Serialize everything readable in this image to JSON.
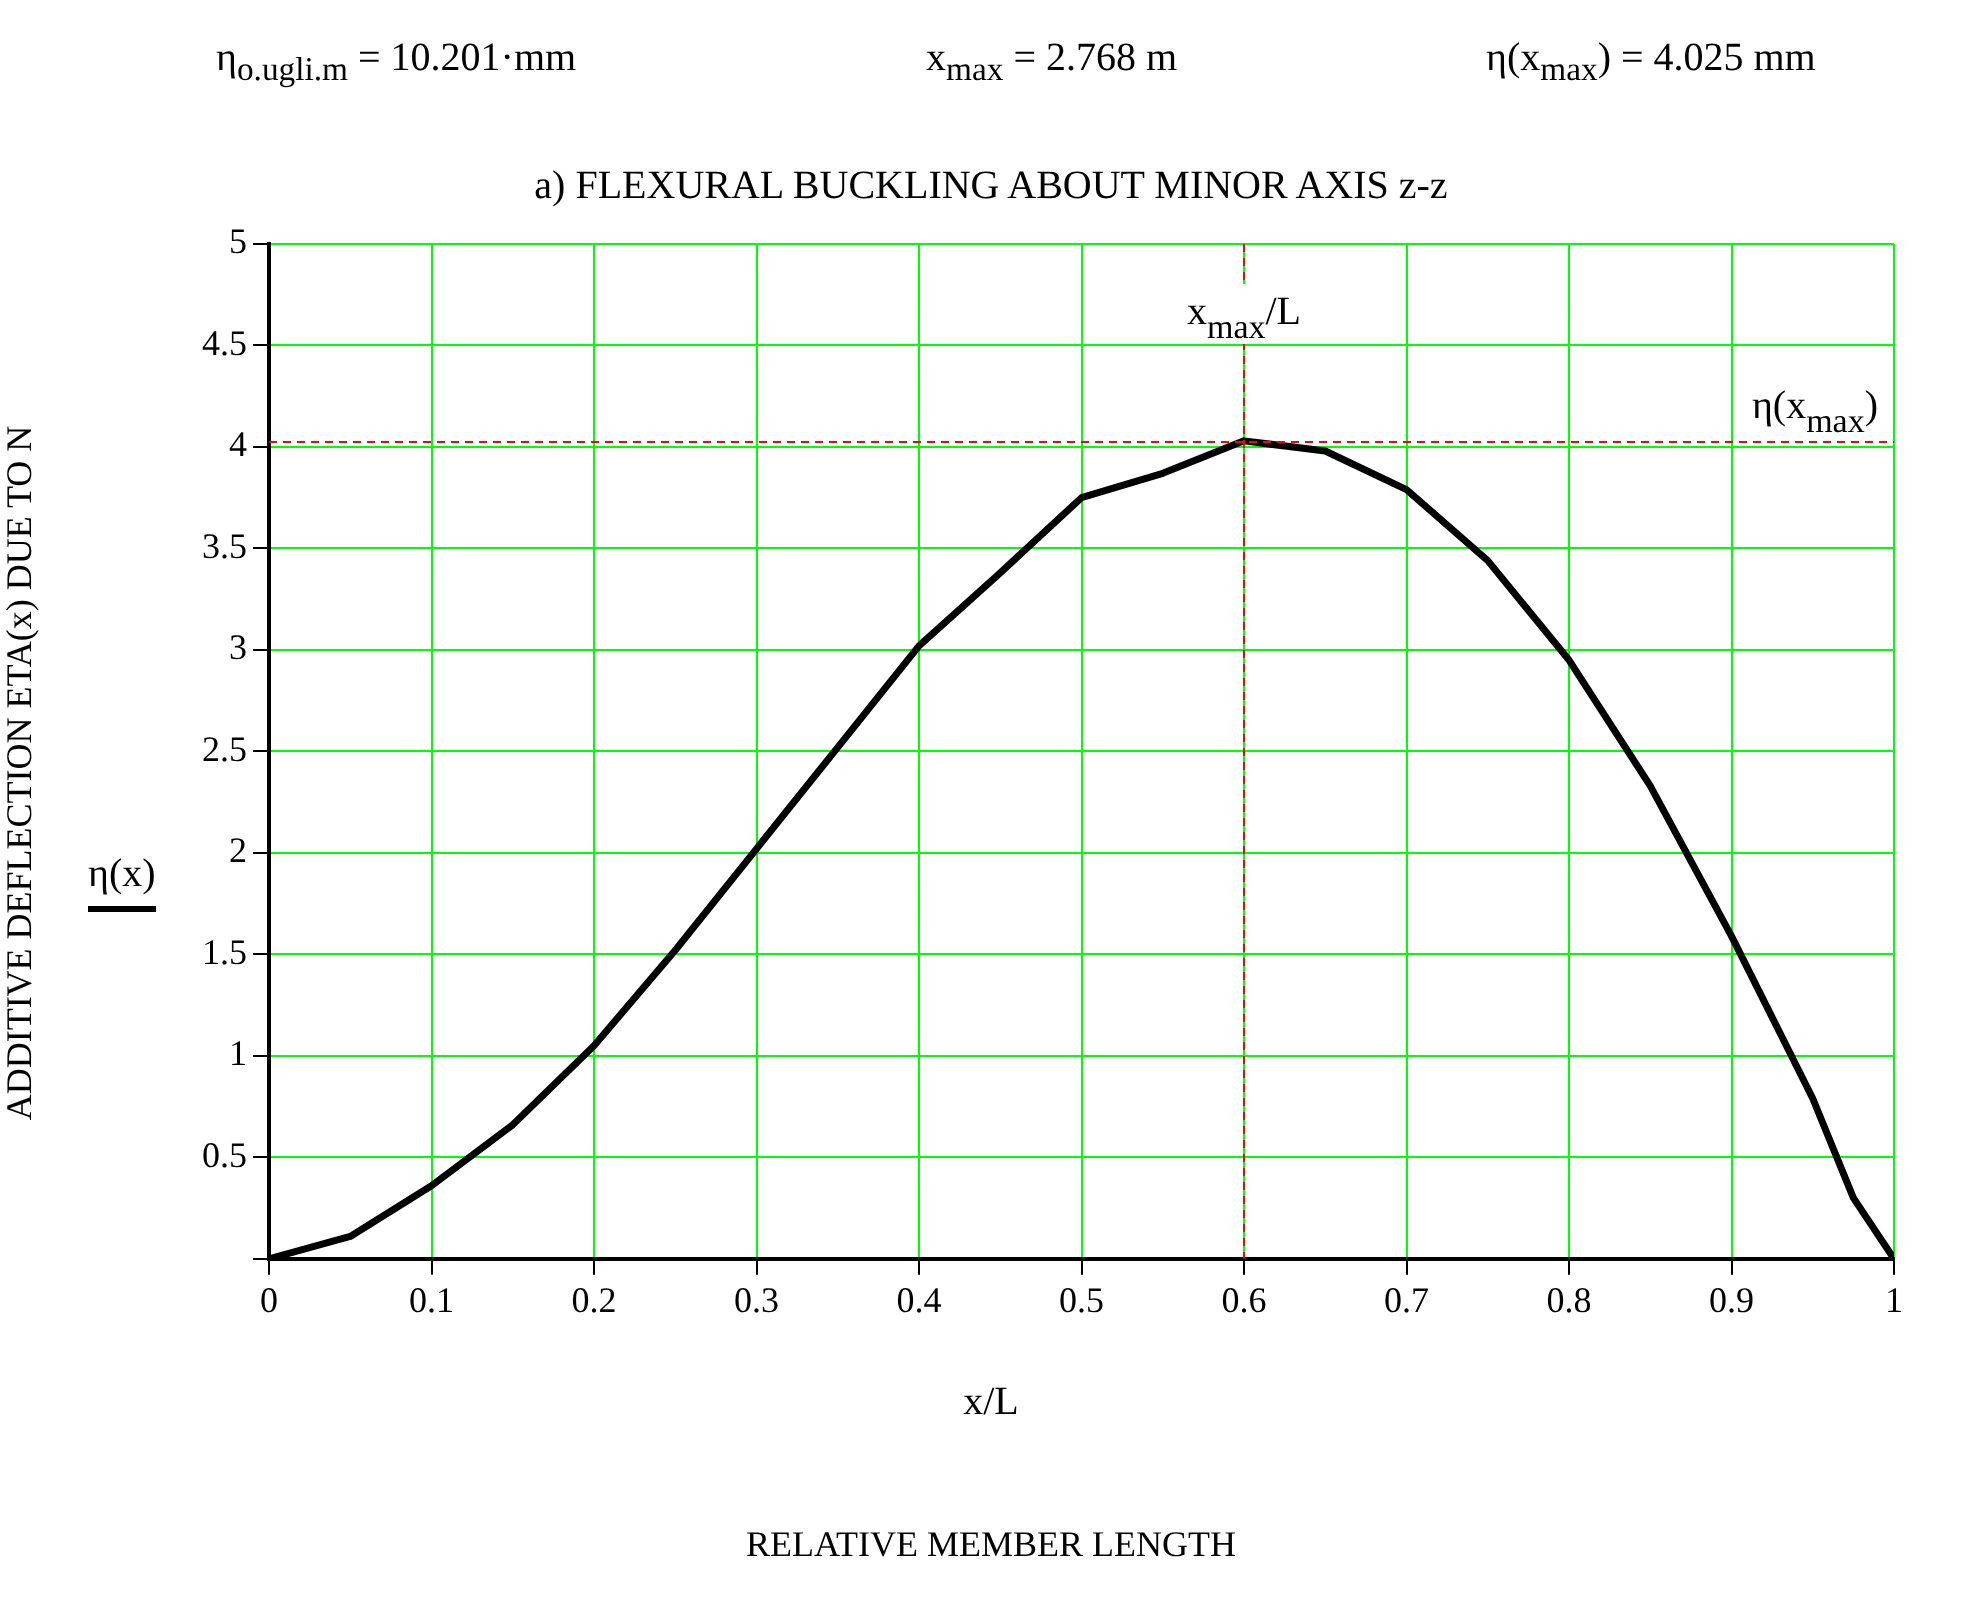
{
  "chart_data": {
    "type": "line",
    "title": "a) FLEXURAL BUCKLING ABOUT MINOR AXIS z-z",
    "xlabel": "x/L",
    "ylabel": "ADDITIVE DEFLECTION ETA(x) DUE TO N",
    "annotations": [
      "η$_{o.ugli.m}$ = 10.201·mm",
      "x$_{max}$ = 2.768 m",
      "η(x$_{max}$) = 4.025 mm",
      "RELATIVE MEMBER LENGTH",
      "η(x)"
    ],
    "x": [
      0,
      0.05,
      0.1,
      0.15,
      0.2,
      0.25,
      0.3,
      0.35,
      0.4,
      0.45,
      0.5,
      0.55,
      0.6,
      0.65,
      0.7,
      0.75,
      0.8,
      0.85,
      0.9,
      0.95,
      0.975,
      1
    ],
    "series": [
      {
        "color": "#000000",
        "values": [
          0,
          0.11,
          0.36,
          0.66,
          1.05,
          1.52,
          2.02,
          2.52,
          3.02,
          3.38,
          3.75,
          3.87,
          4.03,
          3.98,
          3.79,
          3.44,
          2.95,
          2.33,
          1.59,
          0.79,
          0.3,
          0
        ]
      }
    ],
    "xlim": [
      0,
      1
    ],
    "ylim": [
      0,
      5
    ],
    "xticks": [
      0,
      0.1,
      0.2,
      0.3,
      0.4,
      0.5,
      0.6,
      0.7,
      0.8,
      0.9,
      1
    ],
    "yticks": [
      {
        "value": 0,
        "label": null
      },
      0.5,
      1,
      1.5,
      2,
      2.5,
      3,
      3.5,
      4,
      4.5,
      5
    ],
    "grid": true,
    "legend": false,
    "marker": "none",
    "line_style": "solid",
    "ref_lines": [
      {
        "axis": "x",
        "value": 0.6,
        "label": "x$_{max}$/L",
        "color": "#ff0000",
        "line_style": "dashed"
      },
      {
        "axis": "y",
        "value": 4.025,
        "label": "η(x$_{max}$)",
        "color": "#ff0000",
        "line_style": "dashed"
      }
    ]
  }
}
